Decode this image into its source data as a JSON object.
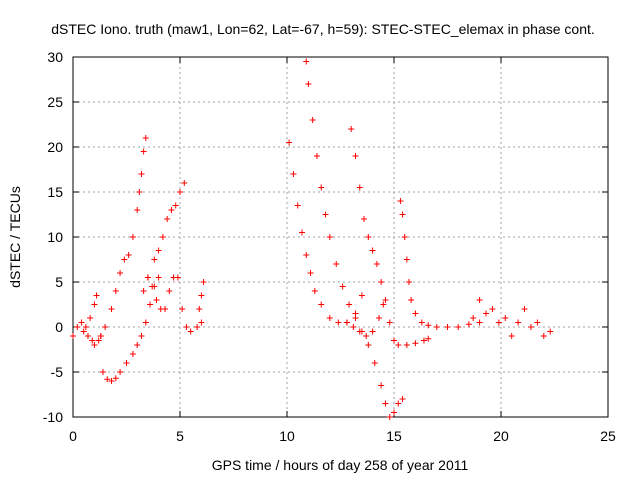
{
  "chart_data": {
    "type": "scatter",
    "title": "dSTEC Iono. truth (maw1, Lon=62, Lat=-67, h=59): STEC-STEC_elemax in phase cont.",
    "xlabel": "GPS time / hours of day 258 of year 2011",
    "ylabel": "dSTEC  / TECUs",
    "xlim": [
      0,
      25
    ],
    "ylim": [
      -10,
      30
    ],
    "xticks": [
      0,
      5,
      10,
      15,
      20,
      25
    ],
    "yticks": [
      -10,
      -5,
      0,
      5,
      10,
      15,
      20,
      25,
      30
    ],
    "xtick_labels": [
      "0",
      "5",
      "10",
      "15",
      "20",
      "25"
    ],
    "ytick_labels": [
      "-10",
      "-5",
      "0",
      "5",
      "10",
      "15",
      "20",
      "25",
      "30"
    ],
    "grid": true,
    "marker": "+",
    "color": "#ff0000",
    "series": [
      {
        "x": [
          0.0,
          0.2,
          0.4,
          0.6,
          0.8,
          1.0,
          1.1
        ],
        "y": [
          -1.0,
          0.0,
          0.5,
          0.0,
          1.0,
          2.5,
          3.5
        ]
      },
      {
        "x": [
          0.5,
          0.7,
          0.9,
          1.0,
          1.2,
          1.3
        ],
        "y": [
          -0.5,
          -1.0,
          -1.5,
          -2.0,
          -1.5,
          -1.0
        ]
      },
      {
        "x": [
          1.3,
          1.5,
          1.8,
          2.0,
          2.2,
          2.4,
          2.6,
          2.8,
          3.0,
          3.1,
          3.2,
          3.3,
          3.4
        ],
        "y": [
          -1.0,
          0.0,
          2.0,
          4.0,
          6.0,
          7.5,
          8.0,
          10.0,
          13.0,
          15.0,
          17.0,
          19.5,
          21.0
        ]
      },
      {
        "x": [
          1.4,
          1.6,
          1.8,
          2.0,
          2.2,
          2.5,
          2.8,
          3.0,
          3.2,
          3.4,
          3.6,
          3.8,
          4.0
        ],
        "y": [
          -5.0,
          -5.8,
          -6.0,
          -5.7,
          -5.0,
          -4.0,
          -3.0,
          -2.0,
          -1.0,
          0.5,
          2.5,
          4.5,
          5.5
        ]
      },
      {
        "x": [
          3.5,
          3.7,
          3.9,
          4.1,
          4.3
        ],
        "y": [
          5.5,
          4.5,
          3.0,
          2.0,
          2.0
        ]
      },
      {
        "x": [
          3.3,
          3.5,
          3.8,
          4.0,
          4.2,
          4.4,
          4.6,
          4.8,
          5.0,
          5.2
        ],
        "y": [
          4.0,
          5.5,
          7.5,
          8.5,
          10.0,
          12.0,
          13.0,
          13.5,
          15.0,
          16.0
        ]
      },
      {
        "x": [
          4.3,
          4.5,
          4.7,
          4.9,
          5.1,
          5.3,
          5.5,
          5.8,
          6.0
        ],
        "y": [
          2.0,
          4.0,
          5.5,
          5.5,
          2.0,
          0.0,
          -0.5,
          0.0,
          0.5
        ]
      },
      {
        "x": [
          5.9,
          6.0,
          6.1
        ],
        "y": [
          2.0,
          3.5,
          5.0
        ]
      },
      {
        "x": [
          10.1,
          10.3,
          10.5,
          10.7,
          10.9,
          11.1,
          11.3,
          11.6,
          12.0,
          12.4,
          12.8,
          13.2,
          13.5
        ],
        "y": [
          20.5,
          17.0,
          13.5,
          10.5,
          8.0,
          6.0,
          4.0,
          2.5,
          1.0,
          0.5,
          0.5,
          1.5,
          3.5
        ]
      },
      {
        "x": [
          10.9,
          11.0,
          11.2,
          11.4,
          11.6,
          11.8,
          12.0,
          12.3,
          12.6,
          12.9,
          13.2,
          13.5,
          13.8,
          14.1,
          14.4,
          14.6,
          14.8,
          15.0,
          15.2,
          15.4
        ],
        "y": [
          29.5,
          27.0,
          23.0,
          19.0,
          15.5,
          12.5,
          10.0,
          7.0,
          4.5,
          2.5,
          1.0,
          -0.5,
          -2.0,
          -4.0,
          -6.5,
          -8.5,
          -10.0,
          -9.5,
          -8.5,
          -8.0
        ]
      },
      {
        "x": [
          13.0,
          13.2,
          13.4,
          13.6,
          13.8,
          14.0,
          14.2,
          14.4,
          14.6,
          14.8,
          15.0,
          15.2,
          15.6,
          16.0,
          16.4,
          16.6
        ],
        "y": [
          22.0,
          19.0,
          15.5,
          12.0,
          10.0,
          8.5,
          7.0,
          5.0,
          3.0,
          0.5,
          -1.5,
          -2.0,
          -2.0,
          -1.8,
          -1.5,
          -1.3
        ]
      },
      {
        "x": [
          12.8,
          13.1,
          13.4,
          13.7,
          14.0,
          14.3,
          14.5
        ],
        "y": [
          0.5,
          0.0,
          -0.5,
          -1.0,
          -0.5,
          1.0,
          2.5
        ]
      },
      {
        "x": [
          15.3,
          15.4,
          15.5,
          15.6,
          15.7,
          15.8,
          16.0,
          16.3,
          16.6,
          17.0,
          17.5,
          18.0,
          18.5,
          19.0
        ],
        "y": [
          14.0,
          12.5,
          10.0,
          7.5,
          5.0,
          3.0,
          1.5,
          0.5,
          0.2,
          0.0,
          0.0,
          0.0,
          0.3,
          0.5
        ]
      },
      {
        "x": [
          18.7,
          19.0,
          19.3,
          19.6,
          19.9,
          20.2,
          20.5,
          20.8,
          21.1,
          21.4,
          21.7,
          22.0,
          22.3
        ],
        "y": [
          1.0,
          3.0,
          1.5,
          2.0,
          0.5,
          1.0,
          -1.0,
          0.5,
          2.0,
          0.0,
          0.5,
          -1.0,
          -0.5
        ]
      }
    ]
  }
}
